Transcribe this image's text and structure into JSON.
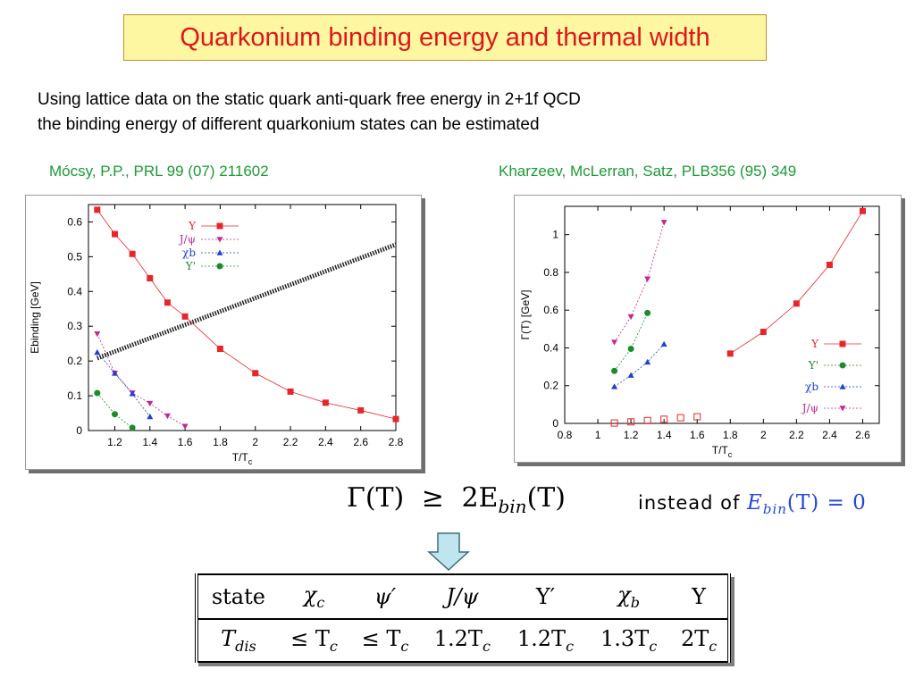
{
  "title": "Quarkonium binding energy and thermal width",
  "intro": {
    "line1": "Using lattice data on the static quark anti-quark free energy in 2+1f QCD",
    "line2": "the binding energy of different quarkonium states can be estimated"
  },
  "citations": {
    "left": "Mócsy, P.P., PRL 99 (07) 211602",
    "right": "Kharzeev, McLerran, Satz, PLB356 (95) 349"
  },
  "colors": {
    "title_text": "#e1141b",
    "title_bg": "#fdf7a2",
    "citation": "#1c9a35",
    "upsilon": "#e8262a",
    "jpsi": "#c2288f",
    "chib": "#1f3fd6",
    "upsilon_prime": "#1a8c2a"
  },
  "chart_data": [
    {
      "type": "scatter",
      "xlabel": "T/Tc",
      "ylabel": "Ebinding [GeV]",
      "xlim": [
        1.05,
        2.8
      ],
      "ylim": [
        0,
        0.65
      ],
      "xticks": [
        "1.2",
        "1.4",
        "1.6",
        "1.8",
        "2",
        "2.2",
        "2.4",
        "2.6",
        "2.8"
      ],
      "yticks": [
        "0",
        "0.1",
        "0.2",
        "0.3",
        "0.4",
        "0.5",
        "0.6"
      ],
      "legend": "top-center",
      "series": [
        {
          "name": "Υ",
          "marker": "square",
          "color": "#e8262a",
          "x": [
            1.1,
            1.2,
            1.3,
            1.4,
            1.5,
            1.6,
            1.8,
            2.0,
            2.2,
            2.4,
            2.6,
            2.8
          ],
          "y": [
            0.635,
            0.565,
            0.508,
            0.438,
            0.368,
            0.328,
            0.235,
            0.165,
            0.112,
            0.08,
            0.058,
            0.033
          ]
        },
        {
          "name": "J/ψ",
          "marker": "triangle-down",
          "color": "#c2288f",
          "x": [
            1.1,
            1.2,
            1.3,
            1.4,
            1.5,
            1.6
          ],
          "y": [
            0.278,
            0.165,
            0.108,
            0.078,
            0.042,
            0.012
          ]
        },
        {
          "name": "χb",
          "marker": "triangle-up",
          "color": "#1f3fd6",
          "x": [
            1.1,
            1.2,
            1.3,
            1.4
          ],
          "y": [
            0.225,
            0.165,
            0.106,
            0.04
          ]
        },
        {
          "name": "Υ'",
          "marker": "circle",
          "color": "#1a8c2a",
          "x": [
            1.1,
            1.2,
            1.3
          ],
          "y": [
            0.108,
            0.047,
            0.008
          ]
        }
      ],
      "band": {
        "x": [
          1.1,
          2.8
        ],
        "y": [
          0.208,
          0.535
        ]
      }
    },
    {
      "type": "scatter",
      "xlabel": "T/Tc",
      "ylabel": "Γ(T) [GeV]",
      "xlim": [
        0.8,
        2.7
      ],
      "ylim": [
        0,
        1.15
      ],
      "xticks": [
        "0.8",
        "1",
        "1.2",
        "1.4",
        "1.6",
        "1.8",
        "2",
        "2.2",
        "2.4",
        "2.6"
      ],
      "yticks": [
        "0",
        "0.2",
        "0.4",
        "0.6",
        "0.8",
        "1"
      ],
      "legend": "bottom-right",
      "series": [
        {
          "name": "Υ",
          "marker": "square",
          "color": "#e8262a",
          "x": [
            1.8,
            2.0,
            2.2,
            2.4,
            2.6
          ],
          "y": [
            0.37,
            0.485,
            0.635,
            0.84,
            1.125
          ]
        },
        {
          "name": "Υ'",
          "marker": "circle",
          "color": "#1a8c2a",
          "x": [
            1.1,
            1.2,
            1.3
          ],
          "y": [
            0.278,
            0.395,
            0.585
          ]
        },
        {
          "name": "χb",
          "marker": "triangle-up",
          "color": "#1f3fd6",
          "x": [
            1.1,
            1.2,
            1.3,
            1.4
          ],
          "y": [
            0.195,
            0.255,
            0.325,
            0.42
          ]
        },
        {
          "name": "J/ψ",
          "marker": "triangle-down",
          "color": "#c2288f",
          "x": [
            1.1,
            1.2,
            1.3,
            1.4
          ],
          "y": [
            0.43,
            0.565,
            0.765,
            1.065
          ]
        },
        {
          "name": "",
          "marker": "open-square",
          "color": "#e8262a",
          "x": [
            1.1,
            1.2,
            1.3,
            1.4,
            1.5,
            1.6
          ],
          "y": [
            0.002,
            0.008,
            0.015,
            0.022,
            0.03,
            0.035
          ]
        }
      ]
    }
  ],
  "equation": {
    "lhs": "Γ(T)",
    "op": "≥",
    "rhs": "2E",
    "rhs_sub": "bin",
    "rhs_arg": "(T)"
  },
  "instead": {
    "prefix": "instead of",
    "E": "E",
    "sub": "bin",
    "rest": "(T) = 0"
  },
  "table": {
    "header": [
      "state",
      "χ",
      "ψ′",
      "J/ψ",
      "Υ′",
      "χ",
      "Υ"
    ],
    "header_subs": [
      "",
      "c",
      "",
      "",
      "",
      "b",
      ""
    ],
    "row_label": "T",
    "row_label_sub": "dis",
    "row": [
      "≤ T",
      "≤ T",
      "1.2T",
      "1.2T",
      "1.3T",
      "2T"
    ],
    "row_sub": "c"
  }
}
